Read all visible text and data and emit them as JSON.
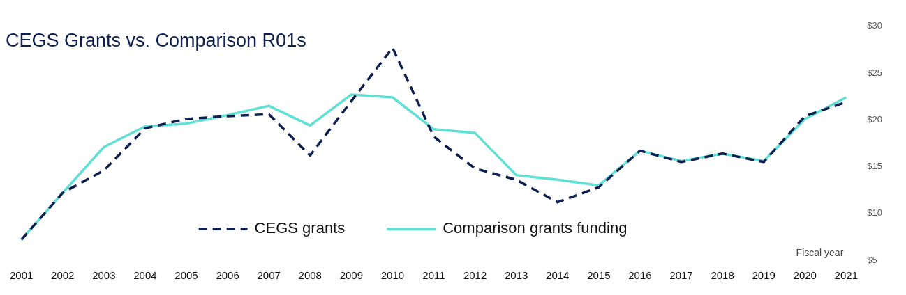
{
  "chart_data": {
    "type": "line",
    "title": "CEGS Grants vs. Comparison R01s",
    "xlabel": "Fiscal year",
    "categories": [
      "2001",
      "2002",
      "2003",
      "2004",
      "2005",
      "2006",
      "2007",
      "2008",
      "2009",
      "2010",
      "2011",
      "2012",
      "2013",
      "2014",
      "2015",
      "2016",
      "2017",
      "2018",
      "2019",
      "2020",
      "2021"
    ],
    "series": [
      {
        "name": "CEGS grants",
        "color": "#0d1f4f",
        "line_style": "dashed",
        "values": [
          7.2,
          12.2,
          14.6,
          19.1,
          20.1,
          20.4,
          20.6,
          16.2,
          22,
          27.7,
          18.2,
          14.8,
          13.6,
          11.2,
          12.8,
          16.7,
          15.5,
          16.4,
          15.5,
          20.4,
          21.9
        ]
      },
      {
        "name": "Comparison grants funding",
        "color": "#5ee0d4",
        "line_style": "solid",
        "values": [
          7.2,
          12.2,
          17.1,
          19.3,
          19.6,
          20.5,
          21.5,
          19.4,
          22.7,
          22.4,
          19,
          18.6,
          14.1,
          13.6,
          13,
          16.7,
          15.6,
          16.4,
          15.6,
          20.1,
          22.4
        ]
      }
    ],
    "ylim": [
      5,
      30
    ],
    "yticks": [
      {
        "value": 5,
        "label": "$5"
      },
      {
        "value": 10,
        "label": "$10"
      },
      {
        "value": 15,
        "label": "$15"
      },
      {
        "value": 20,
        "label": "$20"
      },
      {
        "value": 25,
        "label": "$25"
      },
      {
        "value": 30,
        "label": "$30"
      }
    ],
    "grid": false,
    "legend": "bottom",
    "marker": "none"
  }
}
